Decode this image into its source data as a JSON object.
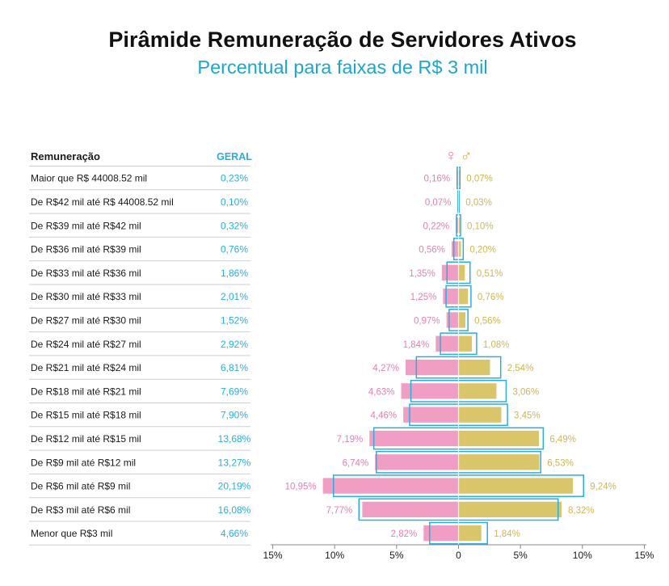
{
  "title": "Pirâmide Remuneração de Servidores Ativos",
  "subtitle": "Percentual para faixas de R$ 3 mil",
  "colors": {
    "female": "#f09ec4",
    "male": "#d9c66b",
    "geral": "#2aaee0",
    "female_text": "#e37fb4",
    "male_text": "#cdb658",
    "text": "#1a1a1a",
    "axis": "#888888",
    "divider": "#cfcfcf"
  },
  "chart_data": {
    "type": "bar",
    "orientation": "horizontal-pyramid",
    "headers": {
      "category": "Remuneração",
      "geral": "GERAL",
      "female_symbol": "♀",
      "male_symbol": "♂"
    },
    "categories": [
      "Maior que R$ 44008.52 mil",
      "De R$42 mil até R$ 44008.52 mil",
      "De R$39 mil até R$42 mil",
      "De R$36 mil até R$39 mil",
      "De R$33 mil até R$36 mil",
      "De R$30 mil até R$33 mil",
      "De R$27 mil até R$30 mil",
      "De R$24 mil até R$27 mil",
      "De R$21 mil até R$24 mil",
      "De R$18 mil até R$21 mil",
      "De R$15 mil até R$18 mil",
      "De R$12 mil até R$15 mil",
      "De R$9 mil até R$12 mil",
      "De R$6 mil até R$9 mil",
      "De R$3 mil até R$6 mil",
      "Menor que R$3 mil"
    ],
    "series": [
      {
        "name": "GERAL",
        "values": [
          0.23,
          0.1,
          0.32,
          0.76,
          1.86,
          2.01,
          1.52,
          2.92,
          6.81,
          7.69,
          7.9,
          13.68,
          13.27,
          20.19,
          16.08,
          4.66
        ],
        "labels": [
          "0,23%",
          "0,10%",
          "0,32%",
          "0,76%",
          "1,86%",
          "2,01%",
          "1,52%",
          "2,92%",
          "6,81%",
          "7,69%",
          "7,90%",
          "13,68%",
          "13,27%",
          "20,19%",
          "16,08%",
          "4,66%"
        ]
      },
      {
        "name": "Feminino",
        "values": [
          0.16,
          0.07,
          0.22,
          0.56,
          1.35,
          1.25,
          0.97,
          1.84,
          4.27,
          4.63,
          4.46,
          7.19,
          6.74,
          10.95,
          7.77,
          2.82
        ],
        "labels": [
          "0,16%",
          "0,07%",
          "0,22%",
          "0,56%",
          "1,35%",
          "1,25%",
          "0,97%",
          "1,84%",
          "4,27%",
          "4,63%",
          "4,46%",
          "7,19%",
          "6,74%",
          "10,95%",
          "7,77%",
          "2,82%"
        ]
      },
      {
        "name": "Masculino",
        "values": [
          0.07,
          0.03,
          0.1,
          0.2,
          0.51,
          0.76,
          0.56,
          1.08,
          2.54,
          3.06,
          3.45,
          6.49,
          6.53,
          9.24,
          8.32,
          1.84
        ],
        "labels": [
          "0,07%",
          "0,03%",
          "0,10%",
          "0,20%",
          "0,51%",
          "0,76%",
          "0,56%",
          "1,08%",
          "2,54%",
          "3,06%",
          "3,45%",
          "6,49%",
          "6,53%",
          "9,24%",
          "8,32%",
          "1,84%"
        ]
      }
    ],
    "outline_note": "outlined boxes show GERAL split in half to each side",
    "xaxis": {
      "ticks": [
        -15,
        -10,
        -5,
        0,
        5,
        10,
        15
      ],
      "tick_labels": [
        "15%",
        "10%",
        "5%",
        "0",
        "5%",
        "10%",
        "15%"
      ],
      "range": [
        -15,
        15
      ]
    }
  }
}
